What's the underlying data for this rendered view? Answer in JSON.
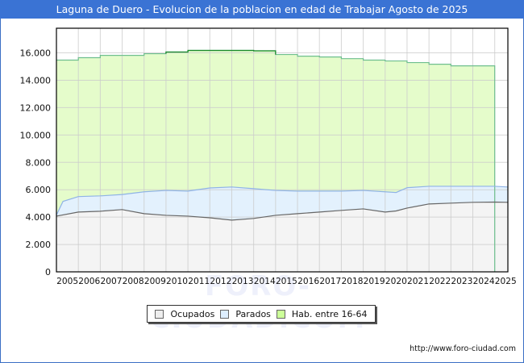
{
  "title": "Laguna de Duero - Evolucion de la poblacion en edad de Trabajar Agosto de 2025",
  "watermark": "FORO-CIUDAD.COM",
  "source": "http://www.foro-ciudad.com",
  "colors": {
    "title_bg": "#3a73d4",
    "ocupados_fill": "#f4f4f4",
    "ocupados_line": "#666666",
    "parados_fill": "#e3f1fd",
    "parados_line": "#8fb3e6",
    "hab_fill": "#e5fccb",
    "hab_line": "#6fbf8f",
    "hab_line_dark": "#1a8a2a",
    "grid": "#cccccc"
  },
  "legend": [
    {
      "label": "Ocupados",
      "color": "#eeeeee"
    },
    {
      "label": "Parados",
      "color": "#ddeeff"
    },
    {
      "label": "Hab. entre 16-64",
      "color": "#ccff99"
    }
  ],
  "chart_data": {
    "type": "area",
    "title": "Laguna de Duero - Evolucion de la poblacion en edad de Trabajar Agosto de 2025",
    "xlabel": "",
    "ylabel": "",
    "ylim": [
      0,
      17800
    ],
    "xlim": [
      2005,
      2025.6
    ],
    "grid": true,
    "legend_position": "bottom",
    "y_ticks": [
      "0",
      "2.000",
      "4.000",
      "6.000",
      "8.000",
      "10.000",
      "12.000",
      "14.000",
      "16.000"
    ],
    "y_tick_values": [
      0,
      2000,
      4000,
      6000,
      8000,
      10000,
      12000,
      14000,
      16000
    ],
    "x_ticks": [
      "2005",
      "2006",
      "2007",
      "2008",
      "2009",
      "2010",
      "2011",
      "2012",
      "2013",
      "2014",
      "2015",
      "2016",
      "2017",
      "2018",
      "2019",
      "2020",
      "2021",
      "2022",
      "2023",
      "2024",
      "2025"
    ],
    "series": [
      {
        "name": "Hab. entre 16-64",
        "kind": "step",
        "x": [
          2005,
          2006,
          2007,
          2008,
          2009,
          2010,
          2011,
          2012,
          2013,
          2014,
          2015,
          2016,
          2017,
          2018,
          2019,
          2020,
          2021,
          2022,
          2023,
          2024
        ],
        "values": [
          15470,
          15650,
          15820,
          15820,
          15940,
          16060,
          16180,
          16180,
          16180,
          16150,
          15880,
          15760,
          15700,
          15580,
          15470,
          15410,
          15290,
          15170,
          15050,
          15050
        ]
      },
      {
        "name": "Parados",
        "kind": "line",
        "note": "top of blue band = Ocupados + Parados",
        "x": [
          2005,
          2005.3,
          2006,
          2007,
          2008,
          2009,
          2010,
          2011,
          2012,
          2013,
          2014,
          2015,
          2016,
          2017,
          2018,
          2019,
          2020,
          2020.5,
          2021,
          2022,
          2023,
          2024,
          2025,
          2025.6
        ],
        "values": [
          4150,
          5150,
          5500,
          5550,
          5650,
          5850,
          5950,
          5900,
          6130,
          6200,
          6080,
          5950,
          5900,
          5900,
          5900,
          5950,
          5850,
          5800,
          6150,
          6250,
          6250,
          6250,
          6250,
          6200
        ]
      },
      {
        "name": "Ocupados",
        "kind": "line",
        "x": [
          2005,
          2006,
          2007,
          2008,
          2009,
          2010,
          2011,
          2012,
          2013,
          2014,
          2015,
          2016,
          2017,
          2018,
          2019,
          2020,
          2020.5,
          2021,
          2022,
          2023,
          2024,
          2025,
          2025.6
        ],
        "values": [
          4070,
          4370,
          4430,
          4550,
          4250,
          4130,
          4070,
          3950,
          3780,
          3900,
          4130,
          4250,
          4370,
          4490,
          4600,
          4370,
          4450,
          4660,
          4960,
          5020,
          5080,
          5100,
          5080
        ]
      }
    ]
  }
}
